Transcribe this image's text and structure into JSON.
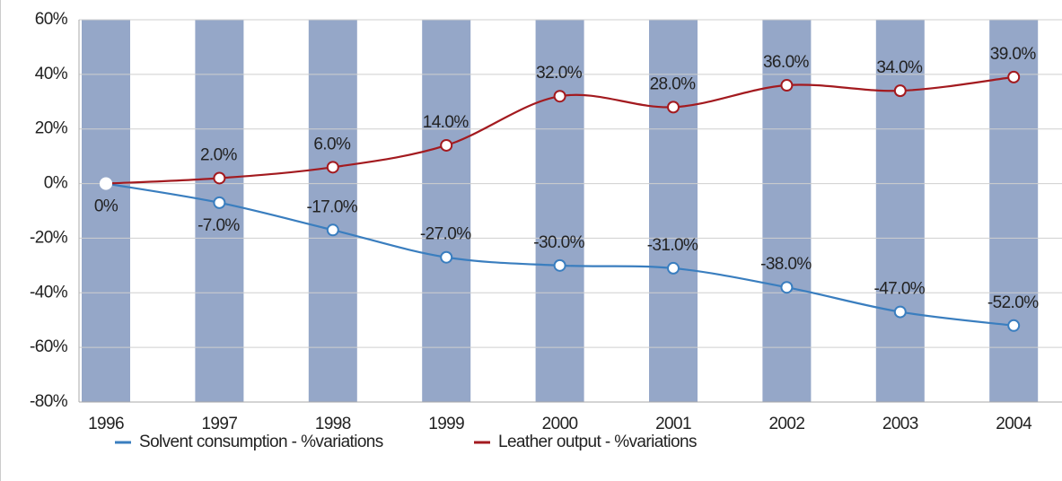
{
  "chart_data": {
    "type": "line",
    "categories": [
      "1996",
      "1997",
      "1998",
      "1999",
      "2000",
      "2001",
      "2002",
      "2003",
      "2004"
    ],
    "series": [
      {
        "name": "Solvent consumption - %variations",
        "color": "#3a7ebf",
        "values": [
          0,
          -7,
          -17,
          -27,
          -30,
          -31,
          -38,
          -47,
          -52
        ],
        "value_labels": [
          "0%",
          "-7.0%",
          "-17.0%",
          "-27.0%",
          "-30.0%",
          "-31.0%",
          "-38.0%",
          "-47.0%",
          "-52.0%"
        ]
      },
      {
        "name": "Leather output - %variations",
        "color": "#a31a1f",
        "values": [
          0,
          2,
          6,
          14,
          32,
          28,
          36,
          34,
          39
        ],
        "value_labels": [
          null,
          "2.0%",
          "6.0%",
          "14.0%",
          "32.0%",
          "28.0%",
          "36.0%",
          "34.0%",
          "39.0%"
        ]
      }
    ],
    "ylim": [
      -80,
      60
    ],
    "yticks": [
      {
        "value": -80,
        "label": "-80%"
      },
      {
        "value": -60,
        "label": "-60%"
      },
      {
        "value": -40,
        "label": "-40%"
      },
      {
        "value": -20,
        "label": "-20%"
      },
      {
        "value": 0,
        "label": "0%"
      },
      {
        "value": 20,
        "label": "20%"
      },
      {
        "value": 40,
        "label": "40%"
      },
      {
        "value": 60,
        "label": "60%"
      }
    ],
    "grid": true,
    "legend": "bottom"
  }
}
